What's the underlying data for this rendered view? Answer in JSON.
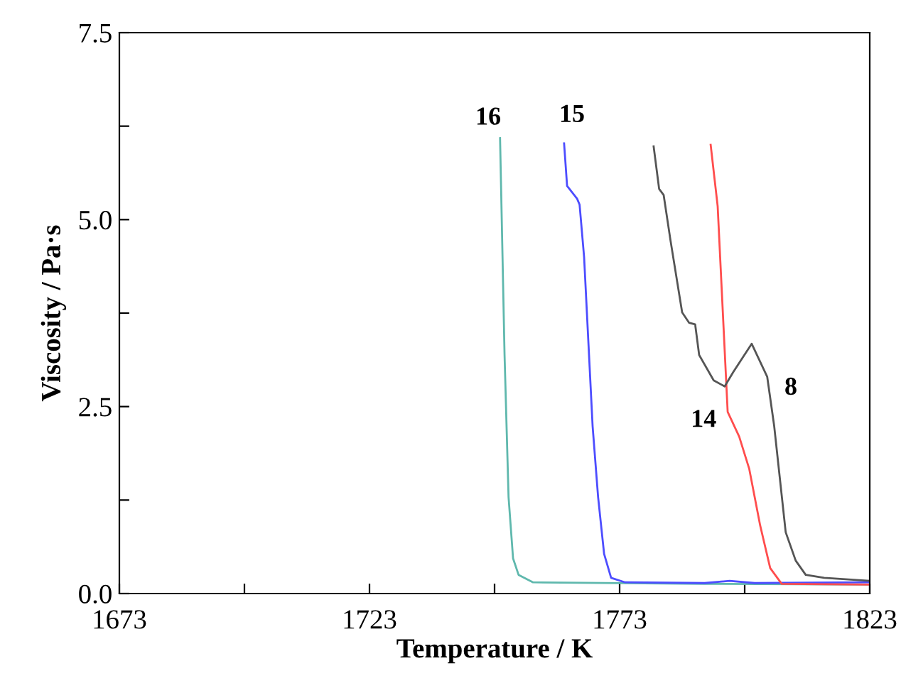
{
  "chart_data": {
    "type": "line",
    "xlabel": "Temperature / K",
    "ylabel": "Viscosity / Pa·s",
    "xlim": [
      1673,
      1823
    ],
    "ylim": [
      0,
      7.5
    ],
    "xticks": [
      1673,
      {
        "value": 1698,
        "label": null
      },
      1723,
      {
        "value": 1748,
        "label": null
      },
      1773,
      {
        "value": 1798,
        "label": null
      },
      1823
    ],
    "yticks": [
      {
        "value": 0,
        "label": "0.0"
      },
      {
        "value": 1.25,
        "label": null
      },
      {
        "value": 2.5,
        "label": "2.5"
      },
      {
        "value": 3.75,
        "label": null
      },
      {
        "value": 5,
        "label": "5.0"
      },
      {
        "value": 6.25,
        "label": null
      },
      {
        "value": 7.5,
        "label": "7.5"
      }
    ],
    "grid": false,
    "legend": false,
    "marker": "none",
    "line_style": "solid",
    "series": [
      {
        "name": "16",
        "color": "#5fb8ad",
        "x": [
          1749.1,
          1750.0,
          1750.8,
          1751.7,
          1752.8,
          1755.7,
          1790,
          1823
        ],
        "values": [
          6.09,
          3.19,
          1.29,
          0.47,
          0.25,
          0.15,
          0.13,
          0.12
        ]
      },
      {
        "name": "15",
        "color": "#4d4dff",
        "x": [
          1761.9,
          1762.5,
          1764.5,
          1765.0,
          1765.9,
          1767.6,
          1768.7,
          1769.9,
          1771.3,
          1774.1,
          1790,
          1795,
          1800,
          1823
        ],
        "values": [
          6.02,
          5.45,
          5.28,
          5.2,
          4.5,
          2.24,
          1.29,
          0.53,
          0.21,
          0.15,
          0.14,
          0.17,
          0.14,
          0.15
        ]
      },
      {
        "name": "14",
        "color": "#ff4d4d",
        "x": [
          1791.2,
          1792.6,
          1794.6,
          1796.9,
          1798.9,
          1801.1,
          1803.1,
          1805.4,
          1823
        ],
        "values": [
          6.0,
          5.18,
          2.43,
          2.1,
          1.67,
          0.91,
          0.34,
          0.13,
          0.12
        ]
      },
      {
        "name": "8",
        "color": "#555555",
        "x": [
          1779.8,
          1780.9,
          1781.8,
          1783.2,
          1785.5,
          1786.9,
          1788.1,
          1788.9,
          1791.8,
          1794.0,
          1795.7,
          1799.4,
          1802.5,
          1803.9,
          1806.2,
          1808.2,
          1810.2,
          1813.9,
          1823
        ],
        "values": [
          5.98,
          5.41,
          5.33,
          4.71,
          3.76,
          3.62,
          3.6,
          3.19,
          2.85,
          2.77,
          2.96,
          3.34,
          2.9,
          2.24,
          0.82,
          0.44,
          0.25,
          0.21,
          0.17
        ]
      }
    ]
  }
}
